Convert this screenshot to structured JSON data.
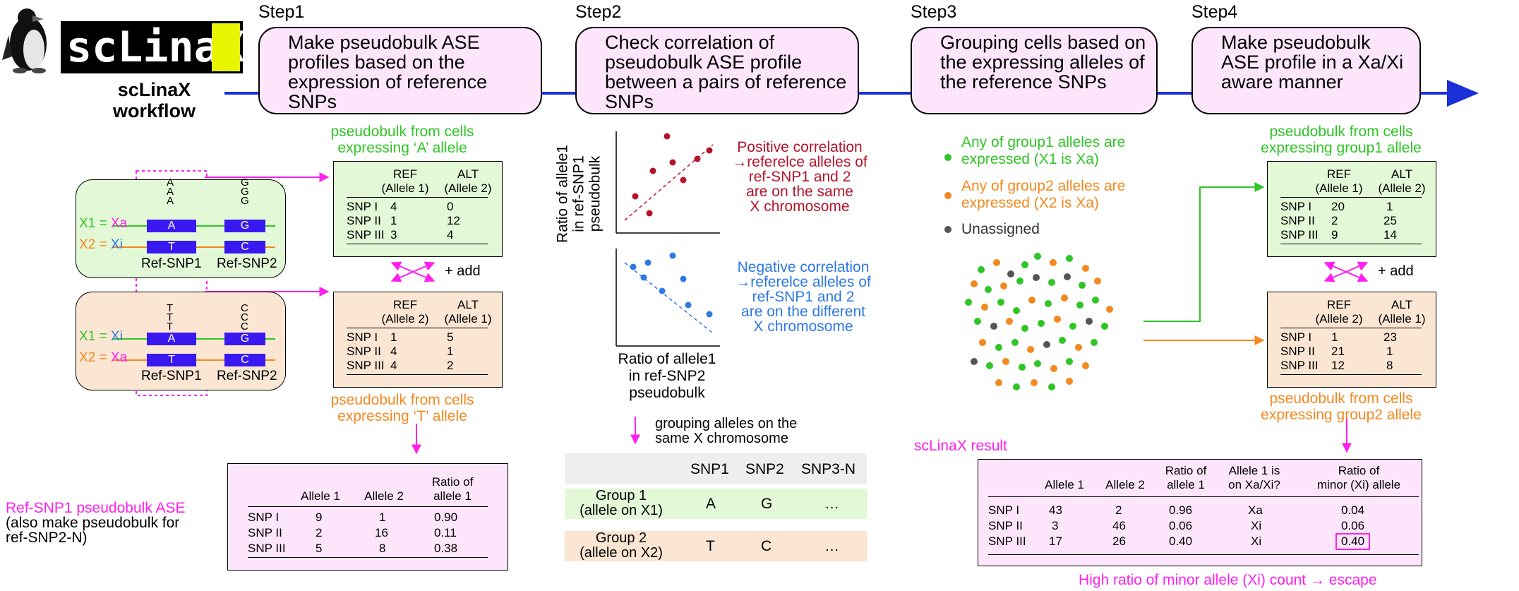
{
  "header": {
    "logo_text": "scLinaX",
    "workflow_title": "scLinaX\nworkflow"
  },
  "steps": [
    {
      "label": "Step1",
      "text": "Make pseudobulk ASE profiles based on the expression of reference SNPs"
    },
    {
      "label": "Step2",
      "text": "Check correlation of pseudobulk ASE profile between a pairs of reference SNPs"
    },
    {
      "label": "Step3",
      "text": "Grouping cells based on the expressing alleles of the reference SNPs"
    },
    {
      "label": "Step4",
      "text": "Make pseudobulk ASE profile in a Xa/Xi aware manner"
    }
  ],
  "step1": {
    "top_caption": "pseudobulk from cells\nexpressing ‘A’ allele",
    "bottom_caption": "pseudobulk from cells\nexpressing ‘T’ allele",
    "add_label": "+ add",
    "cell_top": {
      "x1": "X1 = ",
      "x1_state": "Xa",
      "x2": "X2 = ",
      "x2_state": "Xi",
      "snp1_top": "A",
      "snp1_bot": "T",
      "snp2_top": "G",
      "snp2_bot": "C",
      "wave1_letters": "A\nA\nA",
      "wave2_letters": "G\nG\nG",
      "ref1": "Ref-SNP1",
      "ref2": "Ref-SNP2"
    },
    "cell_bottom": {
      "x1": "X1 = ",
      "x1_state": "Xi",
      "x2": "X2 = ",
      "x2_state": "Xa",
      "snp1_top": "A",
      "snp1_bot": "T",
      "snp2_top": "G",
      "snp2_bot": "C",
      "wave1_letters": "T\nT\nT",
      "wave2_letters": "C\nC\nC",
      "ref1": "Ref-SNP1",
      "ref2": "Ref-SNP2"
    },
    "table_top": {
      "h1": "REF\n(Allele 1)",
      "h2": "ALT\n(Allele 2)",
      "rows": [
        [
          "SNP I",
          "4",
          "0"
        ],
        [
          "SNP II",
          "1",
          "12"
        ],
        [
          "SNP III",
          "3",
          "4"
        ]
      ]
    },
    "table_bottom": {
      "h1": "REF\n(Allele 2)",
      "h2": "ALT\n(Allele 1)",
      "rows": [
        [
          "SNP I",
          "1",
          "5"
        ],
        [
          "SNP II",
          "4",
          "1"
        ],
        [
          "SNP III",
          "4",
          "2"
        ]
      ]
    },
    "summary": {
      "caption": "Ref-SNP1 pseudobulk ASE",
      "note": "(also make pseudobulk for\nref-SNP2-N)",
      "headers": [
        "Allele 1",
        "Allele 2",
        "Ratio of\nallele 1"
      ],
      "rows": [
        [
          "SNP I",
          "9",
          "1",
          "0.90"
        ],
        [
          "SNP II",
          "2",
          "16",
          "0.11"
        ],
        [
          "SNP III",
          "5",
          "8",
          "0.38"
        ]
      ]
    }
  },
  "step2": {
    "y_label": "Ratio of allele1\nin ref-SNP1\npseudobulk",
    "x_label": "Ratio of allele1\nin ref-SNP2\npseudobulk",
    "positive": "Positive correlation\n→referelce alleles of\nref-SNP1 and 2\nare on the same\nX chromosome",
    "negative": "Negative correlation\n→referelce alleles of\nref-SNP1 and 2\nare on the different\nX chromosome",
    "grouping_note": "grouping alleles on the\nsame X chromosome",
    "group_table": {
      "headers": [
        "SNP1",
        "SNP2",
        "SNP3-N"
      ],
      "rows": [
        {
          "name": "Group 1\n(allele on X1)",
          "v": [
            "A",
            "G",
            "…"
          ]
        },
        {
          "name": "Group 2\n(allele on X2)",
          "v": [
            "T",
            "C",
            "…"
          ]
        }
      ]
    }
  },
  "step3": {
    "legend": [
      {
        "text": "Any of group1 alleles are\nexpressed (X1 is Xa)",
        "color": "#2fc526"
      },
      {
        "text": "Any of group2 alleles are\nexpressed (X2 is Xa)",
        "color": "#f3891f"
      },
      {
        "text": "Unassigned",
        "color": "#555555"
      }
    ]
  },
  "step4": {
    "top_caption": "pseudobulk from cells\nexpressing group1 allele",
    "bottom_caption": "pseudobulk from cells\nexpressing group2 allele",
    "add_label": "+ add",
    "table_top": {
      "h1": "REF\n(Allele 1)",
      "h2": "ALT\n(Allele 2)",
      "rows": [
        [
          "SNP I",
          "20",
          "1"
        ],
        [
          "SNP II",
          "2",
          "25"
        ],
        [
          "SNP III",
          "9",
          "14"
        ]
      ]
    },
    "table_bottom": {
      "h1": "REF\n(Allele 2)",
      "h2": "ALT\n(Allele 1)",
      "rows": [
        [
          "SNP I",
          "1",
          "23"
        ],
        [
          "SNP II",
          "21",
          "1"
        ],
        [
          "SNP III",
          "12",
          "8"
        ]
      ]
    },
    "result": {
      "caption": "scLinaX result",
      "headers": [
        "Allele 1",
        "Allele 2",
        "Ratio of\nallele 1",
        "Allele 1 is\non Xa/Xi?",
        "Ratio of\nminor (Xi) allele"
      ],
      "rows": [
        [
          "SNP I",
          "43",
          "2",
          "0.96",
          "Xa",
          "0.04"
        ],
        [
          "SNP II",
          "3",
          "46",
          "0.06",
          "Xi",
          "0.06"
        ],
        [
          "SNP III",
          "17",
          "26",
          "0.40",
          "Xi",
          "0.40"
        ]
      ],
      "note": "High ratio of minor allele (Xi) count → escape"
    }
  },
  "colors": {
    "green": "#2fc526",
    "orange": "#f3891f",
    "magenta": "#ff20ee",
    "blue_arrow": "#1a2fd6",
    "red": "#b5132c",
    "blue": "#2e78e6"
  }
}
